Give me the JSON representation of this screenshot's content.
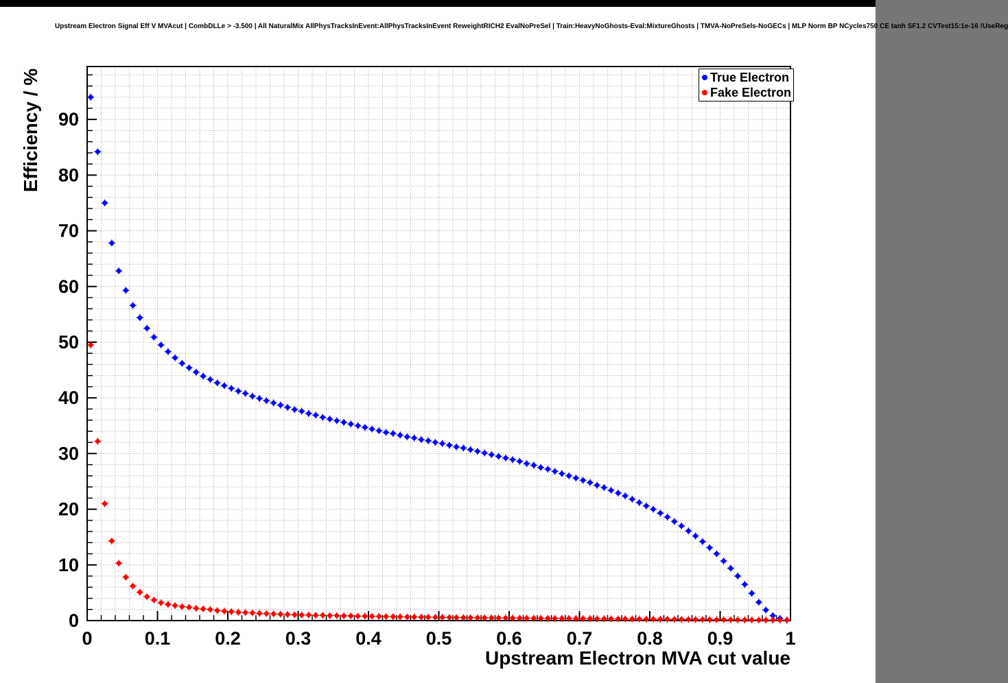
{
  "header": {
    "title": "Upstream Electron Signal Eff V MVAcut | CombDLLe > -3.500 | All NaturalMix AllPhysTracksInEvent:AllPhysTracksInEvent ReweightRICH2 EvalNoPreSel | Train:HeavyNoGhosts-Eval:MixtureGhosts | TMVA-NoPreSels-NoGECs | MLP Norm BP NCycles750 CE tanh SF1.2 CVTest15:1e-16 !UseReg"
  },
  "chart_data": {
    "type": "scatter",
    "title": "Upstream Electron Signal Eff V MVAcut",
    "xlabel": "Upstream Electron MVA cut value",
    "ylabel": "Efficiency / %",
    "xlim": [
      0,
      1
    ],
    "ylim": [
      0,
      99.5
    ],
    "grid": true,
    "grid_style": "dotted",
    "grid_color": "#a8a8a8",
    "frame_color": "#000000",
    "x_major_ticks": [
      0,
      0.1,
      0.2,
      0.3,
      0.4,
      0.5,
      0.6,
      0.7,
      0.8,
      0.9,
      1
    ],
    "x_tick_labels": [
      "0",
      "0.1",
      "0.2",
      "0.3",
      "0.4",
      "0.5",
      "0.6",
      "0.7",
      "0.8",
      "0.9",
      "1"
    ],
    "x_minor_step": 0.02,
    "y_major_ticks": [
      0,
      10,
      20,
      30,
      40,
      50,
      60,
      70,
      80,
      90
    ],
    "y_tick_labels": [
      "0",
      "10",
      "20",
      "30",
      "40",
      "50",
      "60",
      "70",
      "80",
      "90"
    ],
    "y_minor_step": 2,
    "legend": {
      "position": "top-right",
      "entries": [
        {
          "label": "True Electron",
          "color": "#0000ff"
        },
        {
          "label": "Fake Electron",
          "color": "#ff0000"
        }
      ]
    },
    "x": [
      0.005,
      0.015,
      0.025,
      0.035,
      0.045,
      0.055,
      0.065,
      0.075,
      0.085,
      0.095,
      0.105,
      0.115,
      0.125,
      0.135,
      0.145,
      0.155,
      0.165,
      0.175,
      0.185,
      0.195,
      0.205,
      0.215,
      0.225,
      0.235,
      0.245,
      0.255,
      0.265,
      0.275,
      0.285,
      0.295,
      0.305,
      0.315,
      0.325,
      0.335,
      0.345,
      0.355,
      0.365,
      0.375,
      0.385,
      0.395,
      0.405,
      0.415,
      0.425,
      0.435,
      0.445,
      0.455,
      0.465,
      0.475,
      0.485,
      0.495,
      0.505,
      0.515,
      0.525,
      0.535,
      0.545,
      0.555,
      0.565,
      0.575,
      0.585,
      0.595,
      0.605,
      0.615,
      0.625,
      0.635,
      0.645,
      0.655,
      0.665,
      0.675,
      0.685,
      0.695,
      0.705,
      0.715,
      0.725,
      0.735,
      0.745,
      0.755,
      0.765,
      0.775,
      0.785,
      0.795,
      0.805,
      0.815,
      0.825,
      0.835,
      0.845,
      0.855,
      0.865,
      0.875,
      0.885,
      0.895,
      0.905,
      0.915,
      0.925,
      0.935,
      0.945,
      0.955,
      0.965,
      0.975,
      0.985,
      0.995
    ],
    "series": [
      {
        "name": "True Electron",
        "color": "#0000ff",
        "values": [
          94.0,
          84.2,
          75.0,
          67.8,
          62.8,
          59.3,
          56.6,
          54.4,
          52.5,
          50.9,
          49.5,
          48.3,
          47.2,
          46.2,
          45.4,
          44.6,
          43.9,
          43.3,
          42.7,
          42.2,
          41.7,
          41.2,
          40.8,
          40.3,
          39.9,
          39.5,
          39.1,
          38.7,
          38.3,
          37.9,
          37.6,
          37.2,
          36.9,
          36.5,
          36.2,
          35.9,
          35.6,
          35.3,
          35.0,
          34.7,
          34.4,
          34.1,
          33.8,
          33.6,
          33.3,
          33.0,
          32.8,
          32.5,
          32.3,
          32.0,
          31.8,
          31.5,
          31.2,
          31.0,
          30.7,
          30.4,
          30.1,
          29.8,
          29.5,
          29.2,
          28.9,
          28.6,
          28.2,
          27.9,
          27.5,
          27.2,
          26.8,
          26.4,
          26.0,
          25.6,
          25.2,
          24.8,
          24.3,
          23.9,
          23.4,
          22.9,
          22.4,
          21.8,
          21.2,
          20.6,
          20.0,
          19.3,
          18.6,
          17.8,
          17.0,
          16.1,
          15.2,
          14.2,
          13.1,
          12.0,
          10.7,
          9.4,
          8.0,
          6.5,
          4.9,
          3.3,
          1.9,
          0.9,
          0.4,
          0.1
        ]
      },
      {
        "name": "Fake Electron",
        "color": "#ff0000",
        "values": [
          49.5,
          32.2,
          21.0,
          14.3,
          10.3,
          7.8,
          6.2,
          5.1,
          4.3,
          3.7,
          3.2,
          2.9,
          2.7,
          2.5,
          2.4,
          2.2,
          2.1,
          2.0,
          1.8,
          1.7,
          1.6,
          1.5,
          1.45,
          1.4,
          1.3,
          1.25,
          1.2,
          1.15,
          1.1,
          1.05,
          1.0,
          1.0,
          0.95,
          0.95,
          0.9,
          0.9,
          0.85,
          0.85,
          0.8,
          0.8,
          0.78,
          0.75,
          0.72,
          0.7,
          0.68,
          0.66,
          0.65,
          0.63,
          0.62,
          0.6,
          0.58,
          0.57,
          0.55,
          0.54,
          0.52,
          0.51,
          0.5,
          0.49,
          0.48,
          0.47,
          0.46,
          0.45,
          0.44,
          0.43,
          0.42,
          0.41,
          0.4,
          0.39,
          0.38,
          0.37,
          0.36,
          0.35,
          0.34,
          0.33,
          0.32,
          0.31,
          0.3,
          0.29,
          0.28,
          0.27,
          0.26,
          0.25,
          0.24,
          0.23,
          0.22,
          0.21,
          0.2,
          0.19,
          0.18,
          0.17,
          0.16,
          0.15,
          0.14,
          0.13,
          0.12,
          0.11,
          0.1,
          0.1,
          0.09,
          0.09
        ]
      }
    ]
  }
}
